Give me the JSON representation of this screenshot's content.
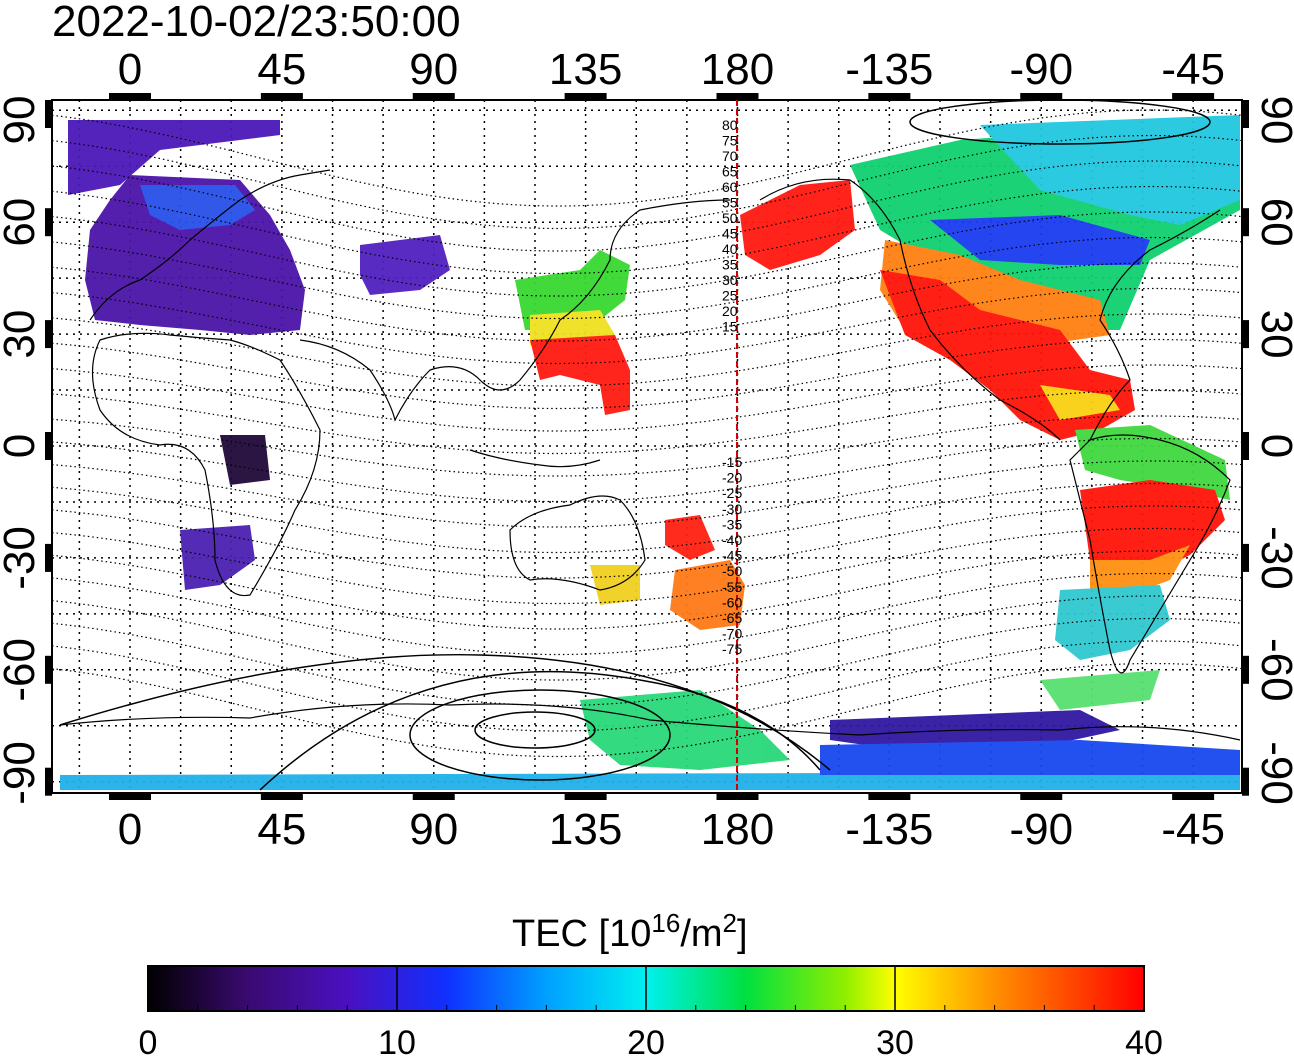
{
  "title": "2022-10-02/23:50:00",
  "top_lon_labels": [
    "0",
    "45",
    "90",
    "135",
    "180",
    "-135",
    "-90",
    "-45"
  ],
  "bottom_lon_labels": [
    "0",
    "45",
    "90",
    "135",
    "180",
    "-135",
    "-90",
    "-45"
  ],
  "left_lat_labels": [
    "90",
    "60",
    "30",
    "0",
    "-30",
    "-60",
    "-90"
  ],
  "right_lat_labels": [
    "90",
    "60",
    "30",
    "0",
    "-30",
    "-60",
    "-90"
  ],
  "contour_labels": [
    "80",
    "75",
    "70",
    "65",
    "60",
    "55",
    "50",
    "45",
    "40",
    "35",
    "30",
    "25",
    "20",
    "15",
    "-15",
    "-20",
    "-25",
    "-30",
    "-35",
    "-40",
    "-45",
    "-50",
    "-55",
    "-60",
    "-65",
    "-70",
    "-75"
  ],
  "colorbar": {
    "label_main": "TEC  [10",
    "label_sup1": "16",
    "label_mid": "/m",
    "label_sup2": "2",
    "label_end": "]",
    "ticks": [
      "0",
      "10",
      "20",
      "30",
      "40"
    ],
    "range": [
      0,
      40
    ]
  },
  "colors": {
    "low": "#000000",
    "purple": "#4a0aa0",
    "blue": "#0a3cff",
    "cyan": "#00e5ff",
    "green": "#00e000",
    "yellow": "#ffff00",
    "orange": "#ff9900",
    "red": "#ff0000",
    "meridian_line": "#d40000"
  }
}
